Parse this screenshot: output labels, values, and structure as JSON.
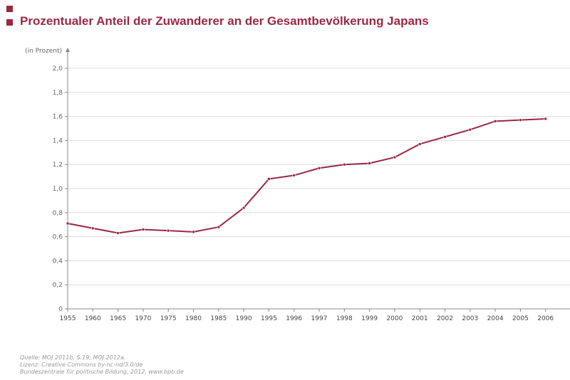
{
  "header": {
    "title": "Prozentualer Anteil der Zuwanderer an der Gesamtbevölkerung Japans"
  },
  "chart_data": {
    "type": "line",
    "title": "Prozentualer Anteil der Zuwanderer an der Gesamtbevölkerung Japans",
    "ylabel": "(in Prozent)",
    "xlabel": "",
    "ylim": [
      0,
      2.0
    ],
    "yticks": [
      "0",
      "0,2",
      "0,4",
      "0,6",
      "0,8",
      "1,0",
      "1,2",
      "1,4",
      "1,6",
      "1,8",
      "2,0"
    ],
    "grid": true,
    "color": "#9b2743",
    "categories": [
      "1955",
      "1960",
      "1965",
      "1970",
      "1975",
      "1980",
      "1985",
      "1990",
      "1995",
      "1996",
      "1997",
      "1998",
      "1999",
      "2000",
      "2001",
      "2002",
      "2003",
      "2004",
      "2005",
      "2006"
    ],
    "values": [
      0.71,
      0.67,
      0.63,
      0.66,
      0.65,
      0.64,
      0.68,
      0.84,
      1.08,
      1.11,
      1.17,
      1.2,
      1.21,
      1.26,
      1.37,
      1.43,
      1.49,
      1.56,
      1.57,
      1.58
    ]
  },
  "footer": {
    "source": "Quelle: MOJ 2011b, S.19; MOJ 2012a.",
    "license": "Lizenz: Creative Commons by-nc-nd/3.0/de",
    "publisher": "Bundeszentrale für politische Bildung, 2012, www.bpb.de"
  }
}
